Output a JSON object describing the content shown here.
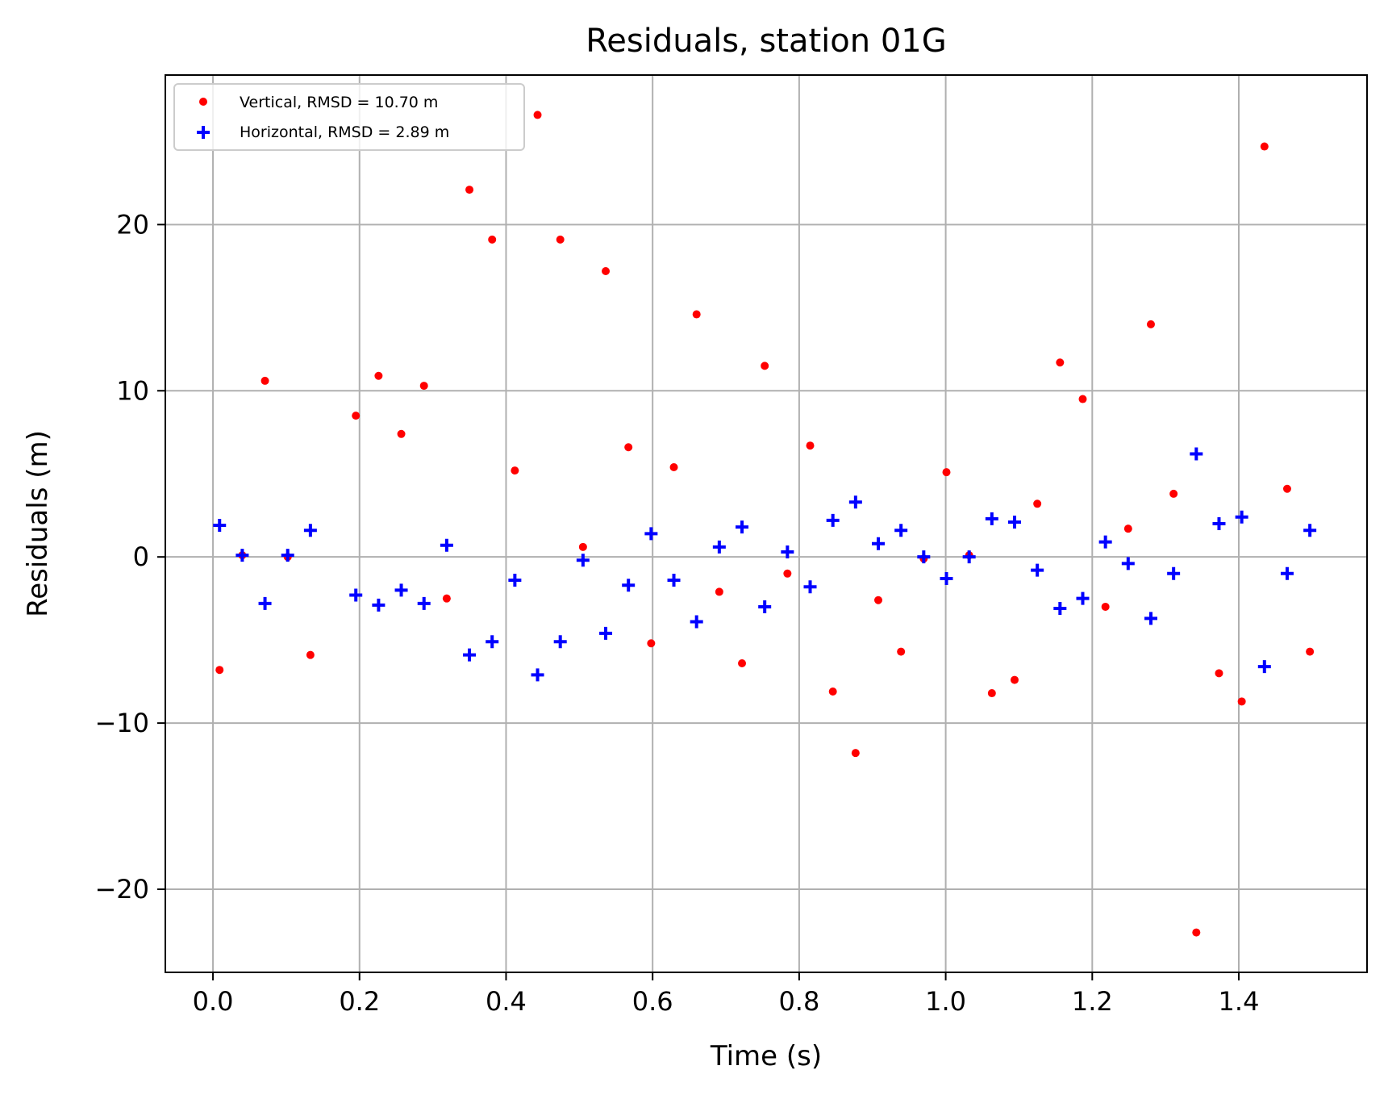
{
  "chart_data": {
    "type": "scatter",
    "title": "Residuals, station 01G",
    "xlabel": "Time (s)",
    "ylabel": "Residuals (m)",
    "xlim": [
      -0.065,
      1.575
    ],
    "ylim": [
      -25,
      29
    ],
    "xticks": [
      0.0,
      0.2,
      0.4,
      0.6,
      0.8,
      1.0,
      1.2,
      1.4
    ],
    "xtick_labels": [
      "0.0",
      "0.2",
      "0.4",
      "0.6",
      "0.8",
      "1.0",
      "1.2",
      "1.4"
    ],
    "yticks": [
      -20,
      -10,
      0,
      10,
      20
    ],
    "ytick_labels": [
      "−20",
      "−10",
      "0",
      "10",
      "20"
    ],
    "grid": true,
    "legend_position": "upper left",
    "series": [
      {
        "name": "Vertical, RMSD = 10.70 m",
        "marker": "dot",
        "color": "#ff0000",
        "x": [
          0.009,
          0.04,
          0.071,
          0.102,
          0.133,
          0.195,
          0.226,
          0.257,
          0.288,
          0.319,
          0.35,
          0.381,
          0.412,
          0.443,
          0.474,
          0.505,
          0.536,
          0.567,
          0.598,
          0.629,
          0.66,
          0.691,
          0.722,
          0.753,
          0.784,
          0.815,
          0.846,
          0.877,
          0.908,
          0.939,
          0.97,
          1.001,
          1.032,
          1.063,
          1.094,
          1.125,
          1.156,
          1.187,
          1.218,
          1.249,
          1.28,
          1.311,
          1.342,
          1.373,
          1.404,
          1.435,
          1.466,
          1.497
        ],
        "y": [
          -6.8,
          0.1,
          10.6,
          0.0,
          -5.9,
          8.5,
          10.9,
          7.4,
          10.3,
          -2.5,
          22.1,
          19.1,
          5.2,
          26.6,
          19.1,
          0.6,
          17.2,
          6.6,
          -5.2,
          5.4,
          14.6,
          -2.1,
          -6.4,
          11.5,
          -1.0,
          6.7,
          -8.1,
          -11.8,
          -2.6,
          -5.7,
          -0.1,
          5.1,
          0.1,
          -8.2,
          -7.4,
          3.2,
          11.7,
          9.5,
          -3.0,
          1.7,
          14.0,
          3.8,
          -22.6,
          -7.0,
          -8.7,
          24.7,
          4.1,
          -5.7
        ]
      },
      {
        "name": "Horizontal, RMSD = 2.89 m",
        "marker": "plus",
        "color": "#0000ff",
        "x": [
          0.009,
          0.04,
          0.071,
          0.102,
          0.133,
          0.195,
          0.226,
          0.257,
          0.288,
          0.319,
          0.35,
          0.381,
          0.412,
          0.443,
          0.474,
          0.505,
          0.536,
          0.567,
          0.598,
          0.629,
          0.66,
          0.691,
          0.722,
          0.753,
          0.784,
          0.815,
          0.846,
          0.877,
          0.908,
          0.939,
          0.97,
          1.001,
          1.032,
          1.063,
          1.094,
          1.125,
          1.156,
          1.187,
          1.218,
          1.249,
          1.28,
          1.311,
          1.342,
          1.373,
          1.404,
          1.435,
          1.466,
          1.497
        ],
        "y": [
          1.9,
          0.1,
          -2.8,
          0.1,
          1.6,
          -2.3,
          -2.9,
          -2.0,
          -2.8,
          0.7,
          -5.9,
          -5.1,
          -1.4,
          -7.1,
          -5.1,
          -0.2,
          -4.6,
          -1.7,
          1.4,
          -1.4,
          -3.9,
          0.6,
          1.8,
          -3.0,
          0.3,
          -1.8,
          2.2,
          3.3,
          0.8,
          1.6,
          0.0,
          -1.3,
          0.0,
          2.3,
          2.1,
          -0.8,
          -3.1,
          -2.5,
          0.9,
          -0.4,
          -3.7,
          -1.0,
          6.2,
          2.0,
          2.4,
          -6.6,
          -1.0,
          1.6
        ]
      }
    ]
  }
}
